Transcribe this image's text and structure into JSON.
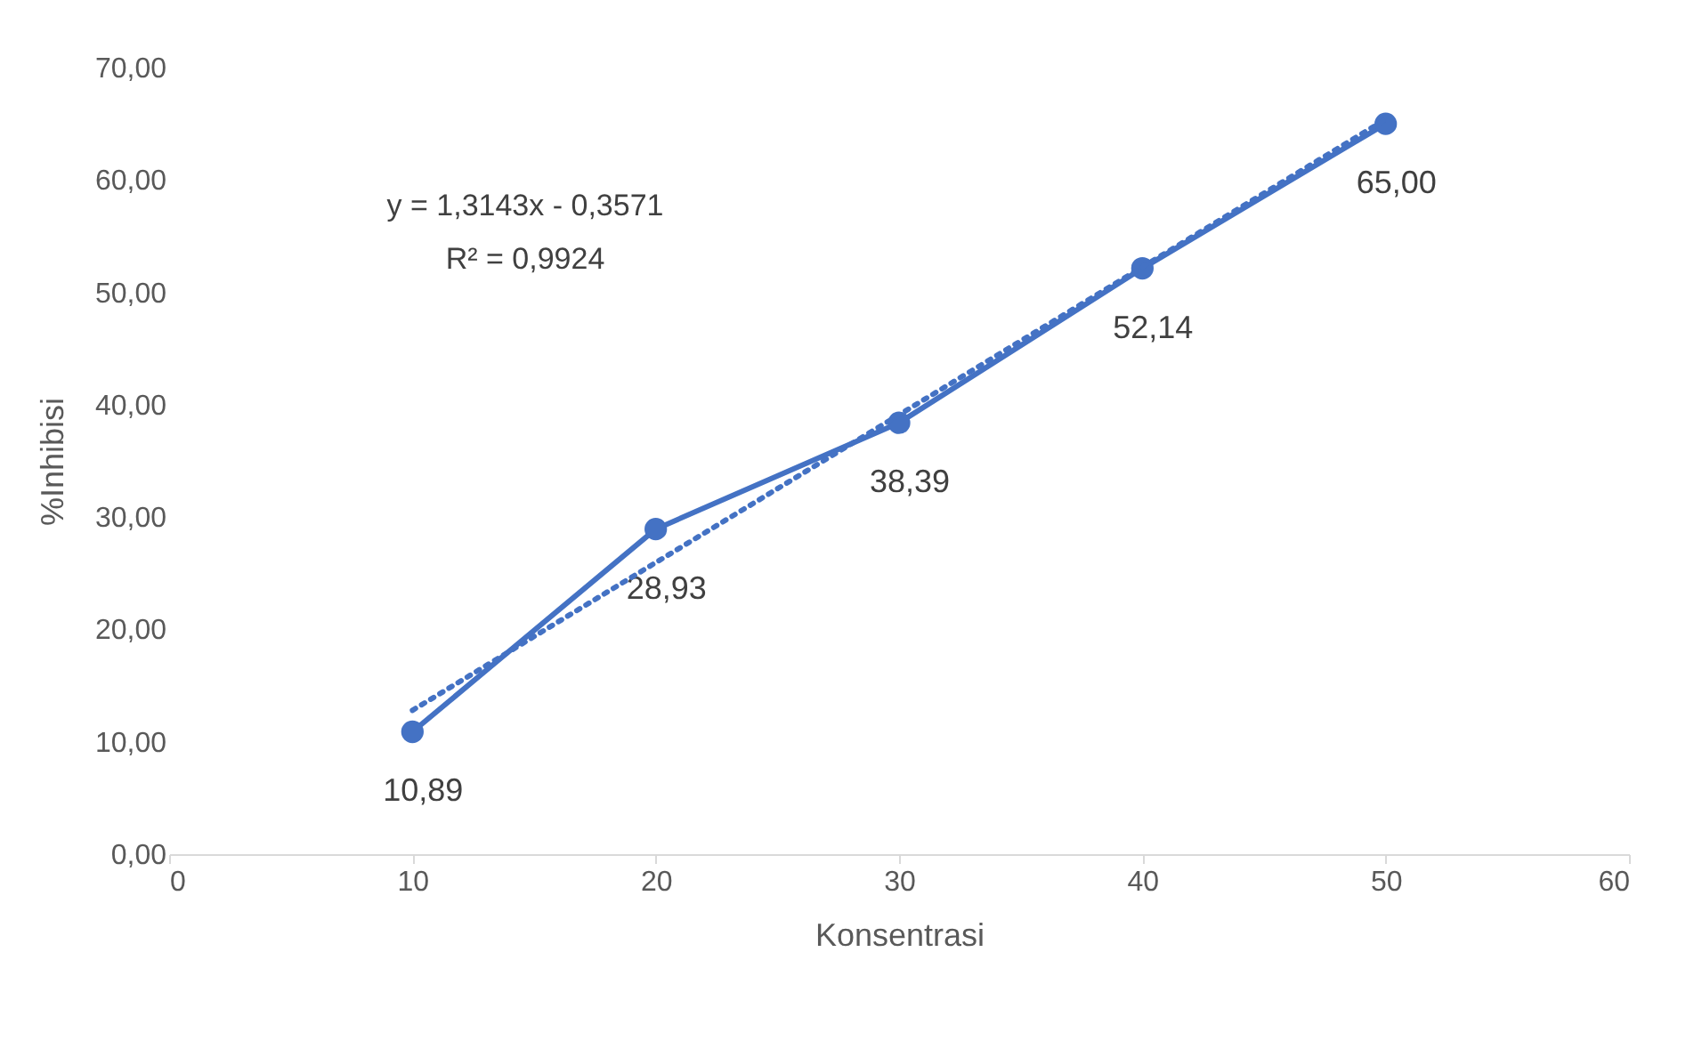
{
  "chart_data": {
    "type": "line",
    "xlabel": "Konsentrasi",
    "ylabel": "%Inhibisi",
    "x": [
      10,
      20,
      30,
      40,
      50
    ],
    "series": [
      {
        "color": "#4472c4",
        "values": [
          10.89,
          28.93,
          38.39,
          52.14,
          65.0
        ],
        "value_labels": [
          "10,89",
          "28,93",
          "38,39",
          "52,14",
          "65,00"
        ],
        "marker": "circle",
        "line_style": "solid"
      },
      {
        "type": "line",
        "color": "#4472c4",
        "x": [
          10,
          50
        ],
        "values": [
          12.8,
          65.4
        ],
        "marker": "none",
        "line_style": "dotted"
      }
    ],
    "annotations": [
      "y = 1,3143x - 0,3571",
      "R² = 0,9924"
    ],
    "xlim": [
      0,
      60
    ],
    "xticks": [
      0,
      10,
      20,
      30,
      40,
      50,
      60
    ],
    "ylim": [
      0,
      70
    ],
    "yticks": [
      {
        "value": 0,
        "label": "0,00"
      },
      {
        "value": 10,
        "label": "10,00"
      },
      {
        "value": 20,
        "label": "20,00"
      },
      {
        "value": 30,
        "label": "30,00"
      },
      {
        "value": 40,
        "label": "40,00"
      },
      {
        "value": 50,
        "label": "50,00"
      },
      {
        "value": 60,
        "label": "60,00"
      },
      {
        "value": 70,
        "label": "70,00"
      }
    ],
    "grid": false
  }
}
